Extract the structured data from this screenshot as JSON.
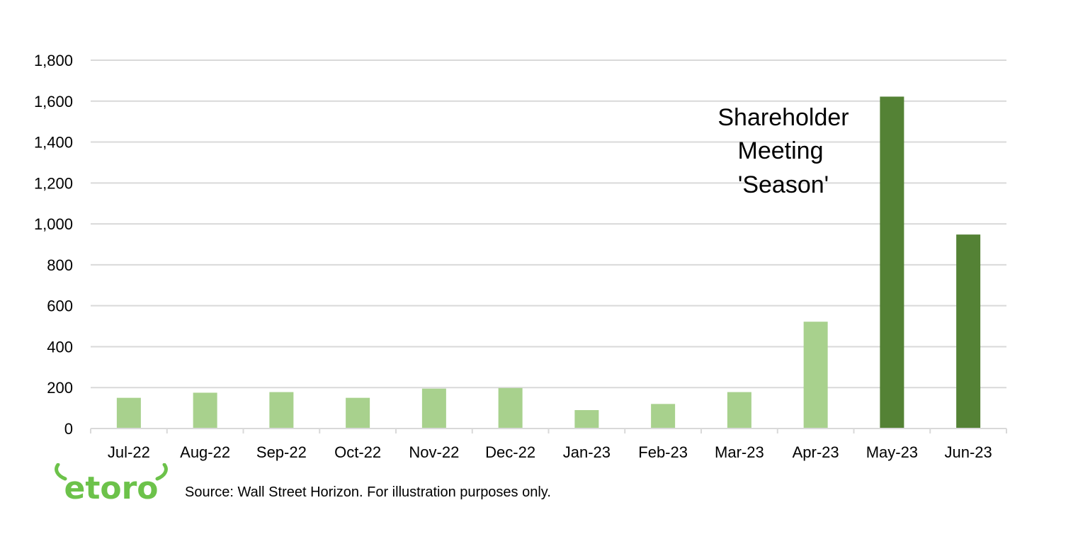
{
  "chart_data": {
    "type": "bar",
    "categories": [
      "Jul-22",
      "Aug-22",
      "Sep-22",
      "Oct-22",
      "Nov-22",
      "Dec-22",
      "Jan-23",
      "Feb-23",
      "Mar-23",
      "Apr-23",
      "May-23",
      "Jun-23"
    ],
    "values": [
      150,
      175,
      178,
      150,
      195,
      198,
      90,
      120,
      178,
      522,
      1622,
      948
    ],
    "highlighted_categories": [
      "May-23",
      "Jun-23"
    ],
    "ylim": [
      0,
      1800
    ],
    "yticks": [
      0,
      200,
      400,
      600,
      800,
      1000,
      1200,
      1400,
      1600,
      1800
    ],
    "ytick_labels": [
      "0",
      "200",
      "400",
      "600",
      "800",
      "1,000",
      "1,200",
      "1,400",
      "1,600",
      "1,800"
    ],
    "grid": true,
    "annotation": [
      "Shareholder",
      "Meeting",
      "'Season'"
    ],
    "colors": {
      "normal": "#a8d18d",
      "highlight": "#548235",
      "grid": "#d9d9d9",
      "axis": "#d9d9d9"
    }
  },
  "footer": {
    "logo_text": "etoro",
    "source": "Source: Wall Street Horizon. For illustration purposes only.",
    "logo_color": "#6cc24a"
  }
}
